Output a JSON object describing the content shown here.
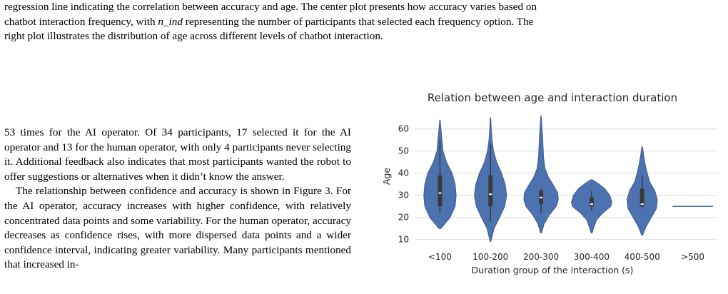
{
  "caption": {
    "line1": "regression line indicating the correlation between accuracy and age. The center plot presents how accuracy varies based on",
    "line2_before": "chatbot interaction frequency, with",
    "line2_var": "n_ind",
    "line2_after": "representing the number of participants that selected each frequency option. The",
    "line3": "right plot illustrates the distribution of age across different levels of chatbot interaction."
  },
  "body": {
    "paragraph1": "53 times for the AI operator. Of 34 participants, 17 selected it for the AI operator and 13 for the human operator, with only 4 participants never selecting it. Additional feedback also indicates that most participants wanted the robot to offer suggestions or alternatives when it didn’t know the answer.",
    "paragraph2": "The relationship between confidence and accuracy is shown in Figure 3. For the AI operator, accuracy increases with higher confidence, with relatively concentrated data points and some variability. For the human operator, accuracy decreases as confidence rises, with more dispersed data points and a wider confidence interval, indicating greater variability. Many participants mentioned that increased in-"
  },
  "chart_data": {
    "type": "violin",
    "title": "Relation between age and interaction duration",
    "xlabel": "Duration group of the interaction (s)",
    "ylabel": "Age",
    "categories": [
      "<100",
      "100-200",
      "200-300",
      "300-400",
      "400-500",
      ">500"
    ],
    "yticks": [
      10,
      20,
      30,
      40,
      50,
      60
    ],
    "ylim": [
      7,
      67
    ],
    "grid": true,
    "color": "#4c72b0",
    "box_color": "#3a3a3a",
    "median_color": "#ffffff",
    "violins": [
      {
        "category": "<100",
        "min": 15,
        "max": 64,
        "q1": 25,
        "median": 31,
        "q3": 39,
        "whisker_low": 22,
        "whisker_high": 55,
        "max_halfwidth": 0.33,
        "profile": [
          [
            15,
            0.02
          ],
          [
            20,
            0.2
          ],
          [
            25,
            0.3
          ],
          [
            30,
            0.32
          ],
          [
            35,
            0.3
          ],
          [
            40,
            0.24
          ],
          [
            45,
            0.13
          ],
          [
            50,
            0.06
          ],
          [
            55,
            0.04
          ],
          [
            60,
            0.02
          ],
          [
            64,
            0.005
          ]
        ]
      },
      {
        "category": "100-200",
        "min": 9,
        "max": 65,
        "q1": 25,
        "median": 30.5,
        "q3": 39,
        "whisker_low": 18,
        "whisker_high": 53,
        "max_halfwidth": 0.33,
        "profile": [
          [
            9,
            0.005
          ],
          [
            15,
            0.07
          ],
          [
            20,
            0.18
          ],
          [
            25,
            0.28
          ],
          [
            30,
            0.32
          ],
          [
            35,
            0.29
          ],
          [
            40,
            0.22
          ],
          [
            45,
            0.12
          ],
          [
            50,
            0.06
          ],
          [
            55,
            0.03
          ],
          [
            60,
            0.015
          ],
          [
            65,
            0.005
          ]
        ]
      },
      {
        "category": "200-300",
        "min": 13,
        "max": 66,
        "q1": 26,
        "median": 29,
        "q3": 32,
        "whisker_low": 22,
        "whisker_high": 33,
        "max_halfwidth": 0.34,
        "profile": [
          [
            13,
            0.01
          ],
          [
            17,
            0.06
          ],
          [
            21,
            0.16
          ],
          [
            25,
            0.3
          ],
          [
            28,
            0.34
          ],
          [
            31,
            0.33
          ],
          [
            34,
            0.26
          ],
          [
            38,
            0.15
          ],
          [
            42,
            0.08
          ],
          [
            47,
            0.05
          ],
          [
            52,
            0.04
          ],
          [
            57,
            0.03
          ],
          [
            62,
            0.015
          ],
          [
            66,
            0.003
          ]
        ]
      },
      {
        "category": "300-400",
        "min": 13,
        "max": 37,
        "q1": 25,
        "median": 26,
        "q3": 29,
        "whisker_low": 23,
        "whisker_high": 32,
        "max_halfwidth": 0.4,
        "profile": [
          [
            13,
            0.01
          ],
          [
            16,
            0.05
          ],
          [
            19,
            0.1
          ],
          [
            22,
            0.22
          ],
          [
            25,
            0.38
          ],
          [
            27,
            0.4
          ],
          [
            30,
            0.36
          ],
          [
            33,
            0.26
          ],
          [
            35,
            0.15
          ],
          [
            37,
            0.02
          ]
        ]
      },
      {
        "category": "400-500",
        "min": 12,
        "max": 52,
        "q1": 25,
        "median": 26,
        "q3": 33,
        "whisker_low": 24,
        "whisker_high": 39,
        "max_halfwidth": 0.3,
        "profile": [
          [
            12,
            0.01
          ],
          [
            16,
            0.08
          ],
          [
            20,
            0.18
          ],
          [
            24,
            0.28
          ],
          [
            28,
            0.3
          ],
          [
            32,
            0.25
          ],
          [
            36,
            0.15
          ],
          [
            40,
            0.1
          ],
          [
            44,
            0.06
          ],
          [
            48,
            0.03
          ],
          [
            52,
            0.005
          ]
        ]
      },
      {
        "category": ">500",
        "flat": 25,
        "halfwidth": 0.4
      }
    ]
  }
}
